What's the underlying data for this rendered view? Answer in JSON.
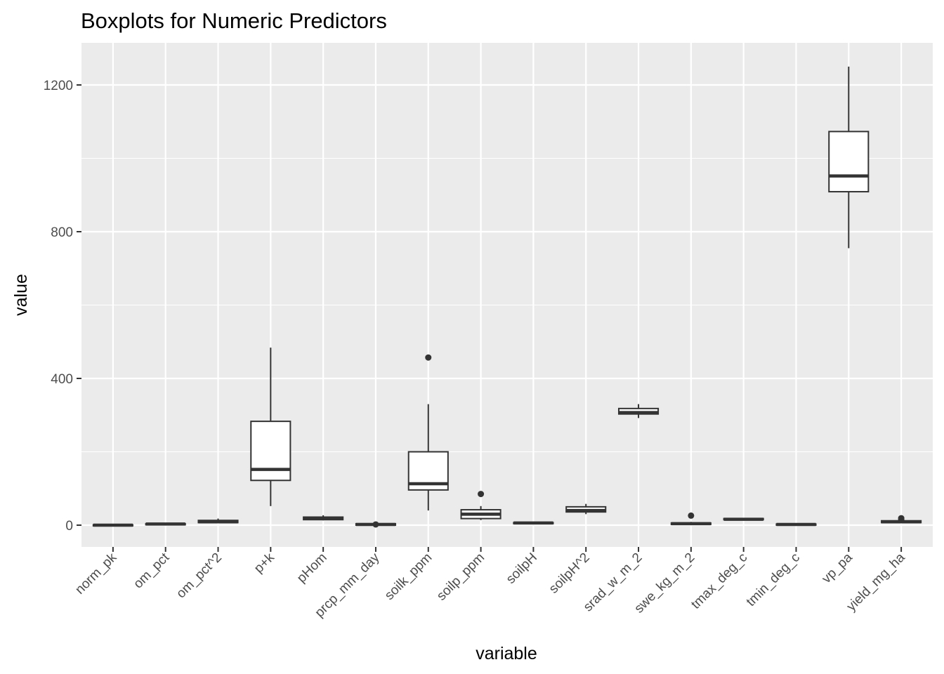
{
  "chart_data": {
    "type": "boxplot",
    "title": "Boxplots for Numeric Predictors",
    "xlabel": "variable",
    "ylabel": "value",
    "ylim": [
      -60,
      1310
    ],
    "yticks": [
      0,
      400,
      800,
      1200
    ],
    "ytick_labels": [
      "0",
      "400",
      "800",
      "1200"
    ],
    "minor_yticks": [
      200,
      600,
      1000
    ],
    "grid": true,
    "background": "#EBEBEB",
    "grid_color": "#FFFFFF",
    "box_fill": "#FFFFFF",
    "box_stroke": "#333333",
    "categories": [
      "norm_pk",
      "om_pct",
      "om_pct^2",
      "p+k",
      "pHom",
      "prcp_mm_day",
      "soilk_ppm",
      "soilp_ppm",
      "soilpH",
      "soilpH^2",
      "srad_w_m_2",
      "swe_kg_m_2",
      "tmax_deg_c",
      "tmin_deg_c",
      "vp_pa",
      "yield_mg_ha"
    ],
    "boxes": [
      {
        "min": -2,
        "q1": -1,
        "median": 0,
        "q3": 1,
        "max": 2,
        "outliers": []
      },
      {
        "min": 1,
        "q1": 2,
        "median": 3,
        "q3": 4,
        "max": 5,
        "outliers": []
      },
      {
        "min": 5,
        "q1": 7,
        "median": 9,
        "q3": 13,
        "max": 18,
        "outliers": []
      },
      {
        "min": 52,
        "q1": 122,
        "median": 152,
        "q3": 283,
        "max": 484,
        "outliers": []
      },
      {
        "min": 13,
        "q1": 15,
        "median": 18,
        "q3": 22,
        "max": 27,
        "outliers": []
      },
      {
        "min": -1,
        "q1": 0,
        "median": 2,
        "q3": 4,
        "max": 5,
        "outliers": [
          2
        ]
      },
      {
        "min": 40,
        "q1": 96,
        "median": 113,
        "q3": 200,
        "max": 330,
        "outliers": [
          457
        ]
      },
      {
        "min": 14,
        "q1": 18,
        "median": 30,
        "q3": 42,
        "max": 52,
        "outliers": [
          85
        ]
      },
      {
        "min": 4,
        "q1": 5,
        "median": 6,
        "q3": 7,
        "max": 8,
        "outliers": []
      },
      {
        "min": 30,
        "q1": 36,
        "median": 40,
        "q3": 50,
        "max": 58,
        "outliers": []
      },
      {
        "min": 292,
        "q1": 303,
        "median": 307,
        "q3": 318,
        "max": 330,
        "outliers": []
      },
      {
        "min": 0,
        "q1": 2,
        "median": 4,
        "q3": 6,
        "max": 9,
        "outliers": [
          26
        ]
      },
      {
        "min": 14,
        "q1": 15,
        "median": 16,
        "q3": 18,
        "max": 19,
        "outliers": []
      },
      {
        "min": 0,
        "q1": 1,
        "median": 2,
        "q3": 3,
        "max": 4,
        "outliers": []
      },
      {
        "min": 755,
        "q1": 909,
        "median": 952,
        "q3": 1073,
        "max": 1250,
        "outliers": []
      },
      {
        "min": 5,
        "q1": 7,
        "median": 9,
        "q3": 12,
        "max": 14,
        "outliers": [
          15,
          19
        ]
      }
    ]
  }
}
